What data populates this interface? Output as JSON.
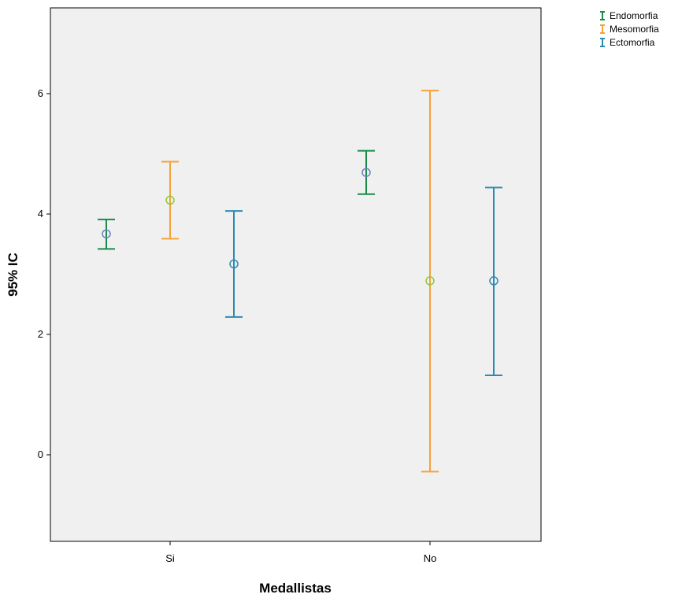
{
  "chart_data": {
    "type": "errorbar",
    "xlabel": "Medallistas",
    "ylabel": "95% IC",
    "categories": [
      "Si",
      "No"
    ],
    "ylim": [
      -1.4,
      7.4
    ],
    "yticks": [
      0,
      2,
      4,
      6
    ],
    "grid": false,
    "legend_position": "top-right",
    "series": [
      {
        "name": "Endomorfia",
        "color": "#1a8a4a",
        "marker_color": "#6a7fc0",
        "means": [
          3.67,
          4.69
        ],
        "lower": [
          3.42,
          4.33
        ],
        "upper": [
          3.91,
          5.05
        ]
      },
      {
        "name": "Mesomorfia",
        "color": "#f5a23a",
        "marker_color": "#8fc83a",
        "means": [
          4.23,
          2.89
        ],
        "lower": [
          3.59,
          -0.28
        ],
        "upper": [
          4.87,
          6.05
        ]
      },
      {
        "name": "Ectomorfia",
        "color": "#2b8cb0",
        "marker_color": "#2b8cb0",
        "means": [
          3.17,
          2.89
        ],
        "lower": [
          2.29,
          1.32
        ],
        "upper": [
          4.05,
          4.44
        ]
      }
    ]
  }
}
